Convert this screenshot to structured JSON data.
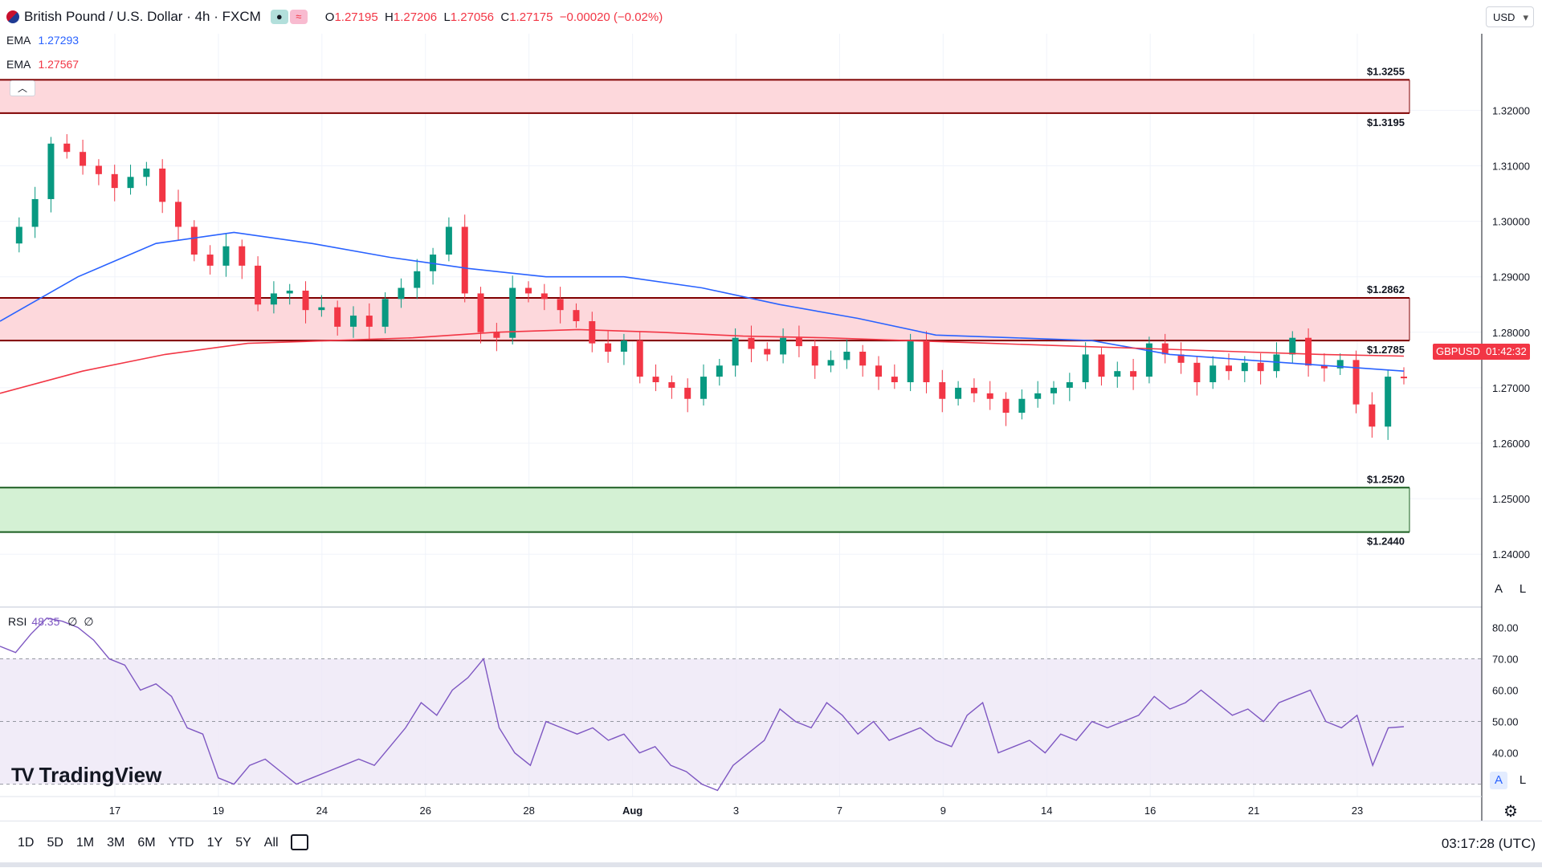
{
  "header": {
    "title": "British Pound / U.S. Dollar · 4h · FXCM",
    "open_label": "O",
    "open": "1.27195",
    "high_label": "H",
    "high": "1.27206",
    "low_label": "L",
    "low": "1.27056",
    "close_label": "C",
    "close": "1.27175",
    "change": "−0.00020 (−0.02%)"
  },
  "ema_fast": {
    "label": "EMA",
    "value": "1.27293",
    "color": "#2962ff"
  },
  "ema_slow": {
    "label": "EMA",
    "value": "1.27567",
    "color": "#f23645"
  },
  "currency_button": "USD",
  "price_tag": {
    "symbol": "GBPUSD",
    "countdown": "01:42:32"
  },
  "rsi": {
    "label": "RSI",
    "value": "48.35",
    "extra1": "∅",
    "extra2": "∅",
    "color": "#7e57c2"
  },
  "logo": {
    "mark": "TV",
    "text": "TradingView"
  },
  "timeframes": [
    "1D",
    "5D",
    "1M",
    "3M",
    "6M",
    "YTD",
    "1Y",
    "5Y",
    "All"
  ],
  "clock": "03:17:28 (UTC)",
  "scale_buttons": {
    "auto": "A",
    "log": "L"
  },
  "chart_data": {
    "type": "candlestick",
    "price_axis": {
      "ylim": [
        1.2328,
        1.3338
      ],
      "ticks": [
        "1.32000",
        "1.31000",
        "1.30000",
        "1.29000",
        "1.28000",
        "1.27000",
        "1.26000",
        "1.25000",
        "1.24000"
      ]
    },
    "x_ticks": [
      "17",
      "19",
      "24",
      "26",
      "28",
      "Aug",
      "3",
      "7",
      "9",
      "14",
      "16",
      "21",
      "23"
    ],
    "zones": [
      {
        "top": 1.3255,
        "bottom": 1.3195,
        "type": "resistance",
        "top_label": "$1.3255",
        "bottom_label": "$1.3195"
      },
      {
        "top": 1.2862,
        "bottom": 1.2785,
        "type": "resistance",
        "top_label": "$1.2862",
        "bottom_label": "$1.2785"
      },
      {
        "top": 1.252,
        "bottom": 1.244,
        "type": "support",
        "top_label": "$1.2520",
        "bottom_label": "$1.2440"
      }
    ],
    "ohlc_keypoints": [
      1.296,
      1.299,
      1.304,
      1.314,
      1.3125,
      1.31,
      1.3085,
      1.306,
      1.308,
      1.3095,
      1.3035,
      1.299,
      1.294,
      1.292,
      1.2955,
      1.292,
      1.285,
      1.287,
      1.2875,
      1.284,
      1.2845,
      1.281,
      1.283,
      1.281,
      1.286,
      1.288,
      1.291,
      1.294,
      1.299,
      1.287,
      1.28,
      1.279,
      1.288,
      1.287,
      1.286,
      1.284,
      1.282,
      1.278,
      1.2765,
      1.2785,
      1.272,
      1.271,
      1.27,
      1.268,
      1.272,
      1.274,
      1.279,
      1.277,
      1.276,
      1.279,
      1.2775,
      1.274,
      1.275,
      1.2765,
      1.274,
      1.272,
      1.271,
      1.2785,
      1.271,
      1.268,
      1.27,
      1.269,
      1.268,
      1.2655,
      1.268,
      1.269,
      1.27,
      1.271,
      1.276,
      1.272,
      1.273,
      1.272,
      1.278,
      1.276,
      1.2745,
      1.271,
      1.274,
      1.273,
      1.2745,
      1.273,
      1.276,
      1.279,
      1.274,
      1.2735,
      1.275,
      1.267,
      1.263,
      1.272,
      1.2718
    ],
    "ema_fast_keypoints": [
      1.282,
      1.29,
      1.296,
      1.298,
      1.296,
      1.2935,
      1.2915,
      1.29,
      1.29,
      1.288,
      1.285,
      1.2825,
      1.2795,
      1.279,
      1.2785,
      1.276,
      1.275,
      1.274,
      1.273
    ],
    "ema_slow_keypoints": [
      1.269,
      1.273,
      1.276,
      1.278,
      1.2785,
      1.279,
      1.28,
      1.2805,
      1.28,
      1.2793,
      1.279,
      1.2785,
      1.278,
      1.2775,
      1.277,
      1.2765,
      1.276,
      1.2757
    ],
    "rsi_axis": {
      "ylim": [
        24,
        85
      ],
      "ticks": [
        "80.00",
        "70.00",
        "60.00",
        "50.00",
        "40.00"
      ],
      "bands": [
        70,
        50,
        30
      ]
    },
    "rsi_values": [
      74,
      72,
      78,
      83,
      82,
      80,
      76,
      70,
      68,
      60,
      62,
      58,
      48,
      46,
      32,
      30,
      36,
      38,
      34,
      30,
      32,
      34,
      36,
      38,
      36,
      42,
      48,
      56,
      52,
      60,
      64,
      70,
      48,
      40,
      36,
      50,
      48,
      46,
      48,
      44,
      46,
      40,
      42,
      36,
      34,
      30,
      28,
      36,
      40,
      44,
      54,
      50,
      48,
      56,
      52,
      46,
      50,
      44,
      46,
      48,
      44,
      42,
      52,
      56,
      40,
      42,
      44,
      40,
      46,
      44,
      50,
      48,
      50,
      52,
      58,
      54,
      56,
      60,
      56,
      52,
      54,
      50,
      56,
      58,
      60,
      50,
      48,
      52,
      36,
      48,
      48.35
    ]
  }
}
